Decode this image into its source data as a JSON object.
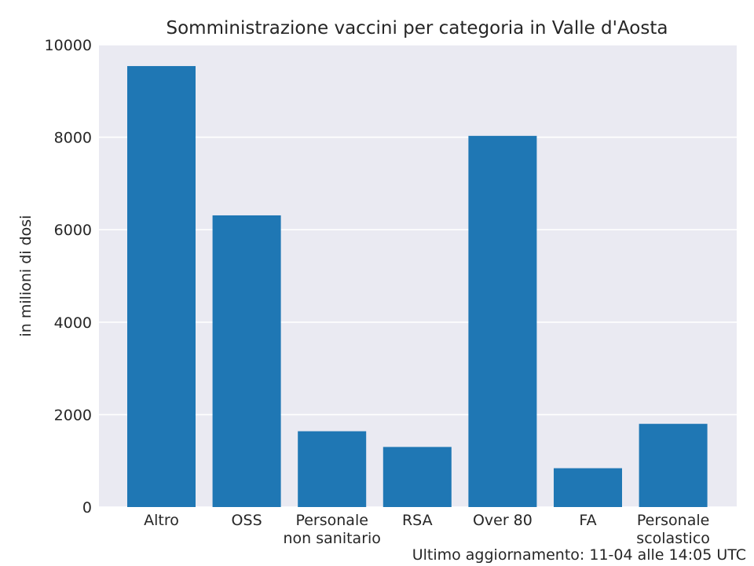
{
  "chart_data": {
    "type": "bar",
    "title": "Somministrazione vaccini per categoria in Valle d'Aosta",
    "xlabel": "",
    "ylabel": "in milioni di dosi",
    "categories": [
      [
        "Altro"
      ],
      [
        "OSS"
      ],
      [
        "Personale",
        "non sanitario"
      ],
      [
        "RSA"
      ],
      [
        "Over 80"
      ],
      [
        "FA"
      ],
      [
        "Personale",
        "scolastico"
      ]
    ],
    "values": [
      9540,
      6310,
      1640,
      1300,
      8030,
      840,
      1800
    ],
    "ylim": [
      0,
      10000
    ],
    "yticks": [
      "0",
      "2000",
      "4000",
      "6000",
      "8000",
      "10000"
    ],
    "grid": true,
    "legend": "none",
    "footer": "Ultimo aggiornamento: 11-04 alle 14:05 UTC",
    "colors": {
      "bar": "#1f77b4",
      "plot_background": "#eaeaf2",
      "grid": "#ffffff"
    }
  }
}
